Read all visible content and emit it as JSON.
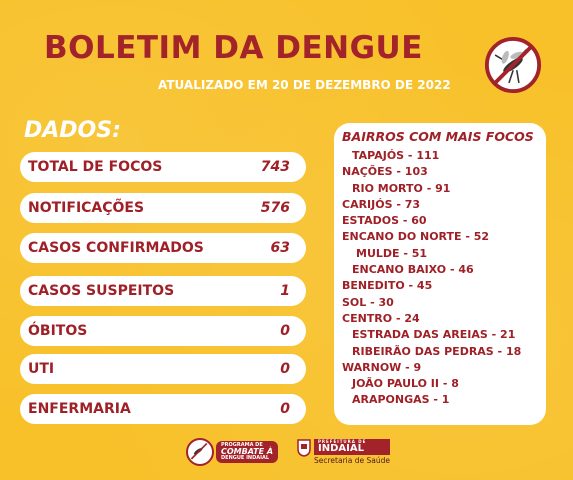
{
  "header": {
    "title": "BOLETIM DA DENGUE",
    "subtitle": "ATUALIZADO EM 20 DE DEZEMBRO DE 2022",
    "icon": "no-mosquito-icon"
  },
  "dados": {
    "heading": "DADOS:",
    "stats": [
      {
        "label": "TOTAL DE FOCOS",
        "value": "743"
      },
      {
        "label": "NOTIFICAÇÕES",
        "value": "576"
      },
      {
        "label": "CASOS CONFIRMADOS",
        "value": "63"
      },
      {
        "label": "CASOS SUSPEITOS",
        "value": "1"
      },
      {
        "label": "ÓBITOS",
        "value": "0"
      },
      {
        "label": "UTI",
        "value": "0"
      },
      {
        "label": "ENFERMARIA",
        "value": "0"
      }
    ]
  },
  "bairros": {
    "heading": "BAIRROS COM MAIS FOCOS",
    "items": [
      "TAPAJÓS - 111",
      "NAÇÕES - 103",
      "RIO MORTO - 91",
      "CARIJÓS - 73",
      "ESTADOS - 60",
      "ENCANO DO NORTE - 52",
      "MULDE - 51",
      "ENCANO BAIXO - 46",
      "BENEDITO - 45",
      "SOL - 30",
      "CENTRO - 24",
      "ESTRADA DAS AREIAS - 21",
      "RIBEIRÃO DAS PEDRAS - 18",
      "WARNOW - 9",
      "JOÃO PAULO II - 8",
      "ARAPONGAS - 1"
    ]
  },
  "footer": {
    "program": {
      "line1": "PROGRAMA DE",
      "line2": "COMBATE À",
      "line3": "DENGUE INDAIAL"
    },
    "prefeitura": {
      "line1": "PREFEITURA DE",
      "line2": "INDAIAL",
      "line3": "Secretaria de Saúde"
    }
  },
  "colors": {
    "background": "#f8c12a",
    "accent": "#a3232a",
    "card": "#ffffff"
  }
}
